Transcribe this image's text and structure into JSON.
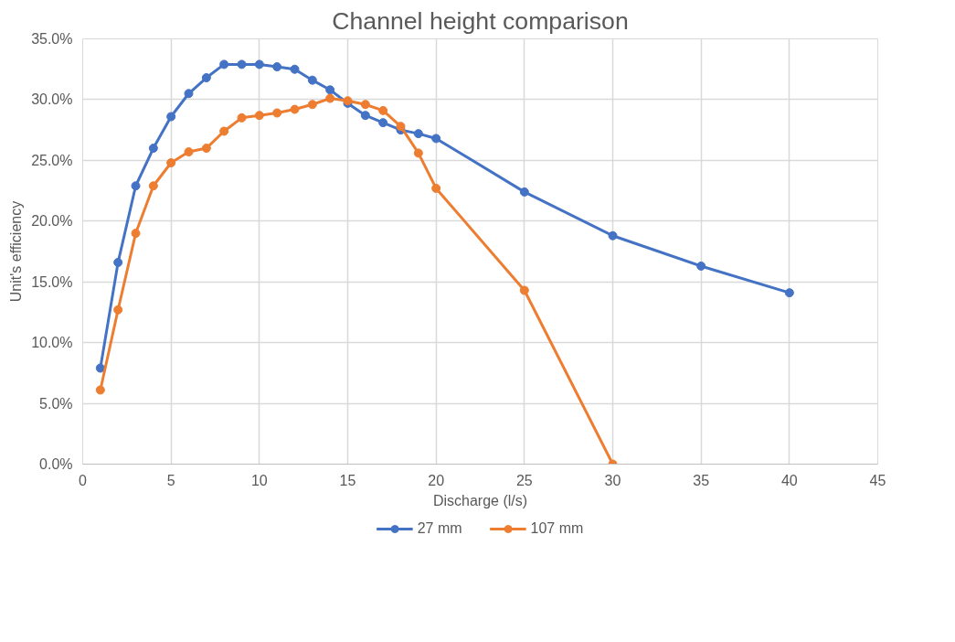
{
  "chart_data": {
    "type": "line",
    "title": "Channel height comparison",
    "xlabel": "Discharge (l/s)",
    "ylabel": "Unit's efficiency",
    "series": [
      {
        "name": "27 mm",
        "color": "#4472c4",
        "x": [
          1,
          2,
          3,
          4,
          5,
          6,
          7,
          8,
          9,
          10,
          11,
          12,
          13,
          14,
          15,
          16,
          17,
          18,
          19,
          20,
          25,
          30,
          35,
          40
        ],
        "values": [
          7.9,
          16.6,
          22.9,
          26.0,
          28.6,
          30.5,
          31.8,
          32.9,
          32.9,
          32.9,
          32.7,
          32.5,
          31.6,
          30.8,
          29.7,
          28.7,
          28.1,
          27.5,
          27.2,
          26.8,
          22.4,
          18.8,
          16.3,
          14.1
        ]
      },
      {
        "name": "107 mm",
        "color": "#ed7d31",
        "x": [
          1,
          2,
          3,
          4,
          5,
          6,
          7,
          8,
          9,
          10,
          11,
          12,
          13,
          14,
          15,
          16,
          17,
          18,
          19,
          20,
          25,
          30
        ],
        "values": [
          6.1,
          12.7,
          19.0,
          22.9,
          24.8,
          25.7,
          26.0,
          27.4,
          28.5,
          28.7,
          28.9,
          29.2,
          29.6,
          30.1,
          29.9,
          29.6,
          29.1,
          27.8,
          25.6,
          22.7,
          14.3,
          0.0
        ]
      }
    ],
    "xlim": [
      0,
      45
    ],
    "xticks": [
      0,
      5,
      10,
      15,
      20,
      25,
      30,
      35,
      40,
      45
    ],
    "ylim": [
      0,
      35
    ],
    "yticks": [
      {
        "value": 0,
        "label": "0.0%"
      },
      {
        "value": 5,
        "label": "5.0%"
      },
      {
        "value": 10,
        "label": "10.0%"
      },
      {
        "value": 15,
        "label": "15.0%"
      },
      {
        "value": 20,
        "label": "20.0%"
      },
      {
        "value": 25,
        "label": "25.0%"
      },
      {
        "value": 30,
        "label": "30.0%"
      },
      {
        "value": 35,
        "label": "35.0%"
      }
    ],
    "grid": true,
    "legend": "bottom",
    "marker": "circle",
    "line_style": "solid"
  }
}
